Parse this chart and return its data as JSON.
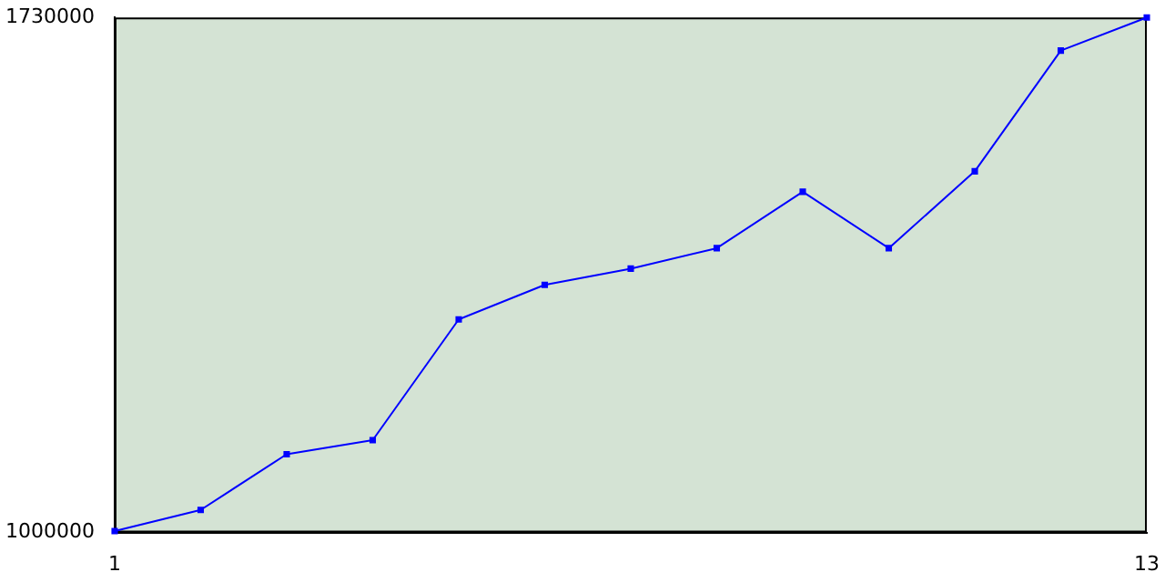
{
  "chart_data": {
    "type": "line",
    "x": [
      1,
      2,
      3,
      4,
      5,
      6,
      7,
      8,
      9,
      10,
      11,
      12,
      13
    ],
    "series": [
      {
        "color": "#0000ff",
        "values": [
          1002000,
          1032000,
          1111000,
          1131000,
          1302000,
          1351000,
          1374000,
          1403000,
          1483000,
          1403000,
          1512000,
          1683000,
          1730000
        ]
      }
    ],
    "xlim": [
      1,
      13
    ],
    "xticks": [
      1,
      13
    ],
    "ylim": [
      1000000,
      1730000
    ],
    "yticks": [
      1000000,
      1730000
    ],
    "grid": false,
    "legend": false,
    "marker": "square",
    "line_style": "solid"
  }
}
